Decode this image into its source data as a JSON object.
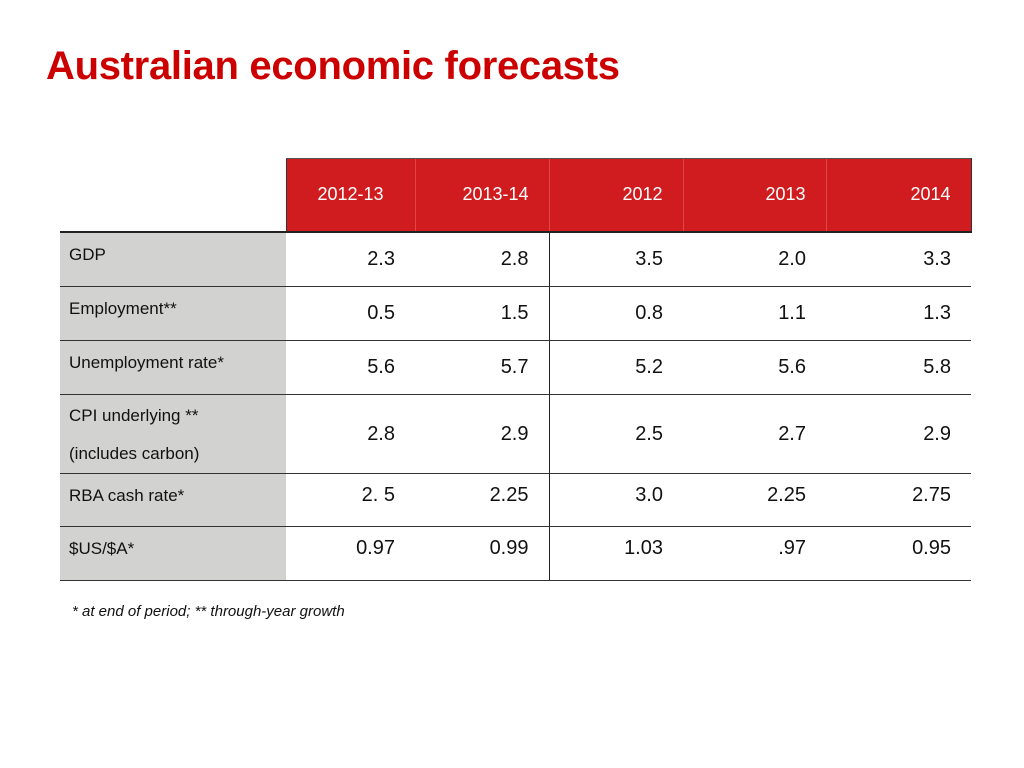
{
  "slide": {
    "title": "Australian economic forecasts",
    "footnote": "* at end of period; ** through-year growth"
  },
  "table": {
    "columns": [
      "2012-13",
      "2013-14",
      "2012",
      "2013",
      "2014"
    ],
    "rows": [
      {
        "label": "GDP",
        "values": [
          "2.3",
          "2.8",
          "3.5",
          "2.0",
          "3.3"
        ]
      },
      {
        "label": "Employment**",
        "values": [
          "0.5",
          "1.5",
          "0.8",
          "1.1",
          "1.3"
        ]
      },
      {
        "label": "Unemployment rate*",
        "values": [
          "5.6",
          "5.7",
          "5.2",
          "5.6",
          "5.8"
        ]
      },
      {
        "label_lines": [
          "CPI underlying **",
          "(includes carbon)"
        ],
        "values": [
          "2.8",
          "2.9",
          "2.5",
          "2.7",
          "2.9"
        ]
      },
      {
        "label": "RBA cash rate*",
        "values": [
          "2. 5",
          "2.25",
          "3.0",
          "2.25",
          "2.75"
        ]
      },
      {
        "label": "$US/$A*",
        "values": [
          "0.97",
          "0.99",
          "1.03",
          ".97",
          "0.95"
        ]
      }
    ]
  },
  "colors": {
    "title": "#cc0000",
    "header_fill": "#d01c1f",
    "label_fill": "#d2d3d1"
  }
}
